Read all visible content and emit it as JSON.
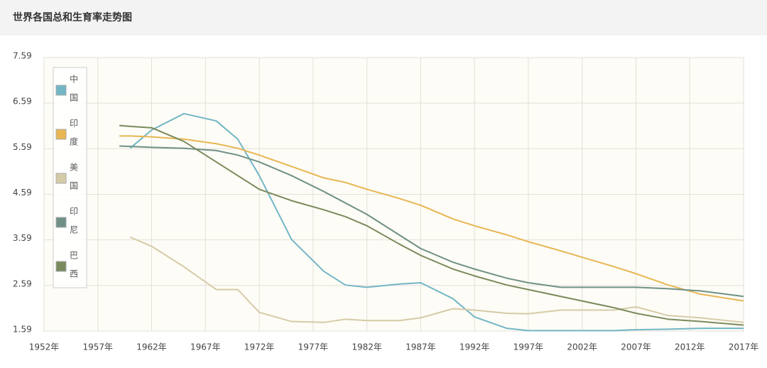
{
  "chart_data": {
    "type": "line",
    "title": "世界各国总和生育率走势图",
    "x": [
      1959,
      1960,
      1962,
      1965,
      1968,
      1970,
      1972,
      1975,
      1978,
      1980,
      1982,
      1985,
      1987,
      1990,
      1992,
      1995,
      1997,
      2000,
      2005,
      2007,
      2010,
      2013,
      2017
    ],
    "series": [
      {
        "name": "中国",
        "color": "#72b6c6",
        "values": [
          null,
          5.6,
          6.0,
          6.36,
          6.2,
          5.8,
          5.0,
          3.6,
          2.9,
          2.6,
          2.55,
          2.62,
          2.65,
          2.3,
          1.9,
          1.65,
          1.6,
          1.6,
          1.6,
          1.62,
          1.63,
          1.65,
          1.65
        ]
      },
      {
        "name": "印度",
        "color": "#e8b653",
        "values": [
          5.87,
          5.87,
          5.85,
          5.8,
          5.7,
          5.6,
          5.45,
          5.2,
          4.95,
          4.85,
          4.7,
          4.5,
          4.35,
          4.05,
          3.9,
          3.7,
          3.55,
          3.35,
          3.0,
          2.85,
          2.6,
          2.4,
          2.25
        ]
      },
      {
        "name": "美国",
        "color": "#d6cba8",
        "values": [
          null,
          3.65,
          3.45,
          3.0,
          2.5,
          2.5,
          2.0,
          1.8,
          1.78,
          1.85,
          1.82,
          1.82,
          1.88,
          2.08,
          2.05,
          1.98,
          1.97,
          2.05,
          2.05,
          2.12,
          1.93,
          1.88,
          1.78
        ]
      },
      {
        "name": "印尼",
        "color": "#6f9086",
        "values": [
          5.65,
          5.64,
          5.62,
          5.6,
          5.55,
          5.45,
          5.3,
          5.0,
          4.65,
          4.4,
          4.15,
          3.7,
          3.4,
          3.1,
          2.95,
          2.75,
          2.65,
          2.55,
          2.55,
          2.55,
          2.52,
          2.47,
          2.35
        ]
      },
      {
        "name": "巴西",
        "color": "#7b8a5c",
        "values": [
          6.1,
          6.08,
          6.05,
          5.75,
          5.3,
          5.0,
          4.7,
          4.45,
          4.25,
          4.1,
          3.9,
          3.5,
          3.25,
          2.95,
          2.8,
          2.6,
          2.5,
          2.35,
          2.1,
          1.98,
          1.85,
          1.8,
          1.72
        ]
      }
    ],
    "xlim": [
      1952,
      2017
    ],
    "xticks": [
      {
        "value": 1952,
        "label": "1952年"
      },
      {
        "value": 1957,
        "label": "1957年"
      },
      {
        "value": 1962,
        "label": "1962年"
      },
      {
        "value": 1967,
        "label": "1967年"
      },
      {
        "value": 1972,
        "label": "1972年"
      },
      {
        "value": 1977,
        "label": "1977年"
      },
      {
        "value": 1982,
        "label": "1982年"
      },
      {
        "value": 1987,
        "label": "1987年"
      },
      {
        "value": 1992,
        "label": "1992年"
      },
      {
        "value": 1997,
        "label": "1997年"
      },
      {
        "value": 2002,
        "label": "2002年"
      },
      {
        "value": 2007,
        "label": "2007年"
      },
      {
        "value": 2012,
        "label": "2012年"
      },
      {
        "value": 2017,
        "label": "2017年"
      }
    ],
    "ylim": [
      1.59,
      7.59
    ],
    "yticks": [
      1.59,
      2.59,
      3.59,
      4.59,
      5.59,
      6.59,
      7.59
    ],
    "grid": true
  }
}
